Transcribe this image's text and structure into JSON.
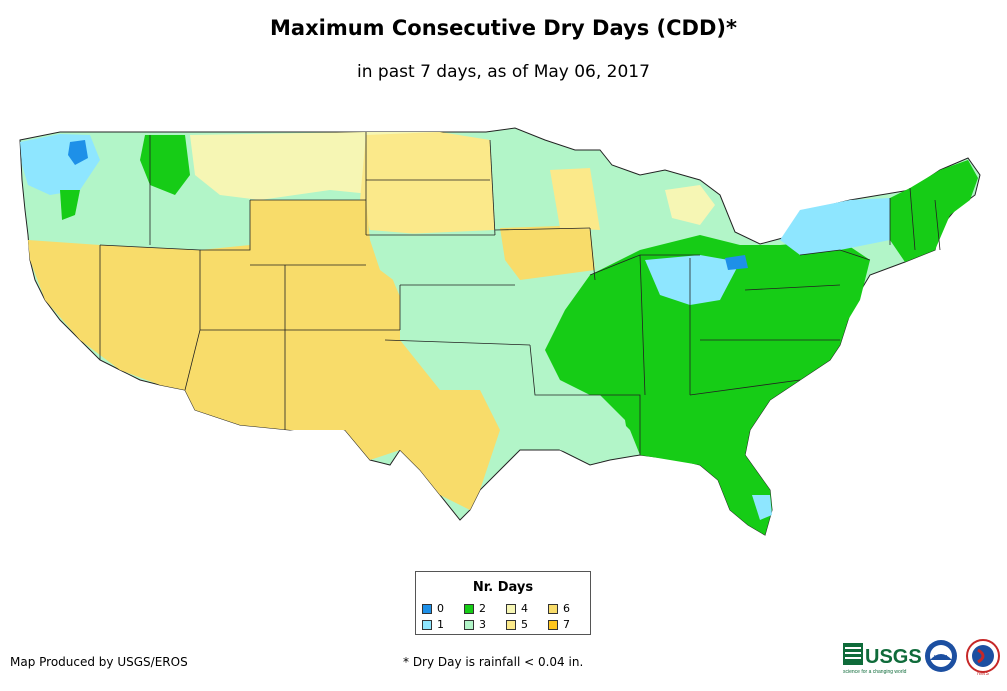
{
  "title": "Maximum Consecutive Dry Days (CDD)*",
  "subtitle": "in past 7 days, as of May 06, 2017",
  "legend": {
    "title": "Nr. Days",
    "items": [
      {
        "label": "0",
        "color": "#1e90e8"
      },
      {
        "label": "1",
        "color": "#8ee6ff"
      },
      {
        "label": "2",
        "color": "#16cc16"
      },
      {
        "label": "3",
        "color": "#b2f5c8"
      },
      {
        "label": "4",
        "color": "#f6f6b4"
      },
      {
        "label": "5",
        "color": "#fbe98a"
      },
      {
        "label": "6",
        "color": "#f8dc6a"
      },
      {
        "label": "7",
        "color": "#ffc61e"
      }
    ]
  },
  "credit": "Map Produced by USGS/EROS",
  "footnote": "* Dry Day is rainfall < 0.04 in.",
  "logos": {
    "usgs": "USGS",
    "usgs_tagline": "science for a changing world",
    "noaa": "NOAA",
    "nws": "NWS"
  }
}
